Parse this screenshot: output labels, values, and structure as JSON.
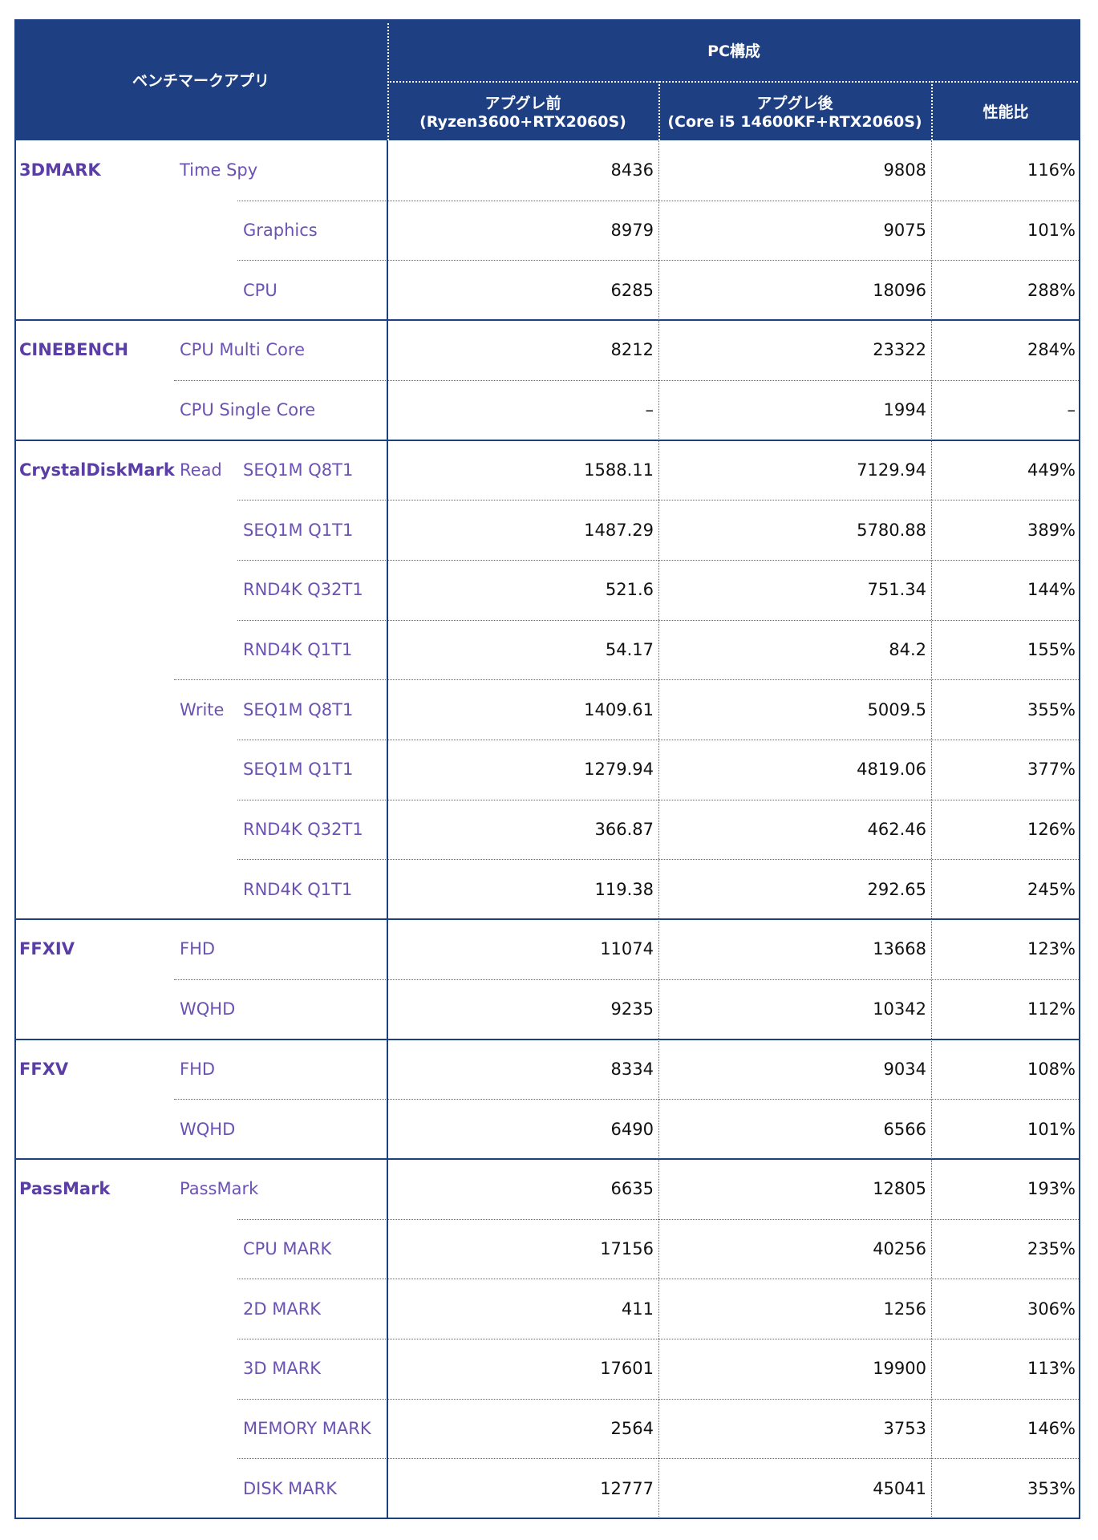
{
  "header": {
    "app": "ベンチマークアプリ",
    "pc": "PC構成",
    "before": [
      "アプグレ前",
      "(Ryzen3600+RTX2060S)"
    ],
    "after": [
      "アプグレ後",
      "(Core i5 14600KF+RTX2060S)"
    ],
    "ratio": "性能比"
  },
  "groups": [
    {
      "name": "3DMARK",
      "rows": [
        {
          "sub": "Time Spy",
          "before": "8436",
          "after": "9808",
          "ratio": "116%"
        },
        {
          "item": "Graphics",
          "before": "8979",
          "after": "9075",
          "ratio": "101%"
        },
        {
          "item": "CPU",
          "before": "6285",
          "after": "18096",
          "ratio": "288%"
        }
      ]
    },
    {
      "name": "CINEBENCH",
      "rows": [
        {
          "sub": "CPU Multi Core",
          "before": "8212",
          "after": "23322",
          "ratio": "284%"
        },
        {
          "sub": "CPU Single Core",
          "before": "–",
          "after": "1994",
          "ratio": "–"
        }
      ]
    },
    {
      "name": "CrystalDiskMark",
      "rows": [
        {
          "sub": "Read",
          "item": "SEQ1M Q8T1",
          "before": "1588.11",
          "after": "7129.94",
          "ratio": "449%"
        },
        {
          "item": "SEQ1M Q1T1",
          "before": "1487.29",
          "after": "5780.88",
          "ratio": "389%"
        },
        {
          "item": "RND4K Q32T1",
          "before": "521.6",
          "after": "751.34",
          "ratio": "144%"
        },
        {
          "item": "RND4K Q1T1",
          "before": "54.17",
          "after": "84.2",
          "ratio": "155%"
        },
        {
          "sub": "Write",
          "item": "SEQ1M Q8T1",
          "before": "1409.61",
          "after": "5009.5",
          "ratio": "355%"
        },
        {
          "item": "SEQ1M Q1T1",
          "before": "1279.94",
          "after": "4819.06",
          "ratio": "377%"
        },
        {
          "item": "RND4K Q32T1",
          "before": "366.87",
          "after": "462.46",
          "ratio": "126%"
        },
        {
          "item": "RND4K Q1T1",
          "before": "119.38",
          "after": "292.65",
          "ratio": "245%"
        }
      ]
    },
    {
      "name": "FFXIV",
      "rows": [
        {
          "sub": "FHD",
          "before": "11074",
          "after": "13668",
          "ratio": "123%"
        },
        {
          "sub": "WQHD",
          "before": "9235",
          "after": "10342",
          "ratio": "112%"
        }
      ]
    },
    {
      "name": "FFXV",
      "rows": [
        {
          "sub": "FHD",
          "before": "8334",
          "after": "9034",
          "ratio": "108%"
        },
        {
          "sub": "WQHD",
          "before": "6490",
          "after": "6566",
          "ratio": "101%"
        }
      ]
    },
    {
      "name": "PassMark",
      "rows": [
        {
          "sub": "PassMark",
          "before": "6635",
          "after": "12805",
          "ratio": "193%"
        },
        {
          "item": "CPU MARK",
          "before": "17156",
          "after": "40256",
          "ratio": "235%"
        },
        {
          "item": "2D MARK",
          "before": "411",
          "after": "1256",
          "ratio": "306%"
        },
        {
          "item": "3D MARK",
          "before": "17601",
          "after": "19900",
          "ratio": "113%"
        },
        {
          "item": "MEMORY MARK",
          "before": "2564",
          "after": "3753",
          "ratio": "146%"
        },
        {
          "item": "DISK MARK",
          "before": "12777",
          "after": "45041",
          "ratio": "353%"
        }
      ]
    }
  ]
}
